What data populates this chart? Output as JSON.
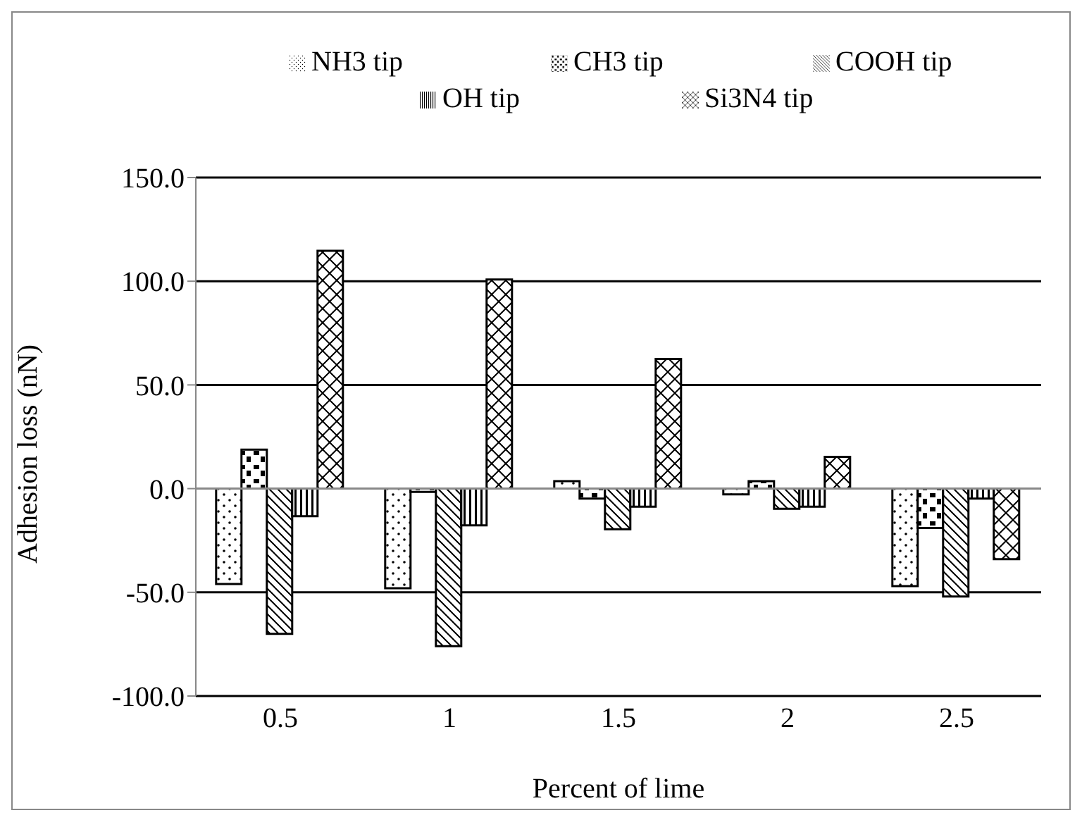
{
  "chart_data": {
    "type": "bar",
    "xlabel": "Percent of lime",
    "ylabel": "Adhesion loss (nN)",
    "categories": [
      "0.5",
      "1",
      "1.5",
      "2",
      "2.5"
    ],
    "series": [
      {
        "name": "NH3 tip",
        "color": "#000000",
        "values": [
          -46,
          -48,
          3.6,
          -2.8,
          -47
        ]
      },
      {
        "name": "CH3 tip",
        "color": "#000000",
        "values": [
          18.8,
          -1.6,
          -4.8,
          3.6,
          -19
        ]
      },
      {
        "name": "COOH tip",
        "color": "#000000",
        "values": [
          -70,
          -76,
          -19.6,
          -9.7,
          -52
        ]
      },
      {
        "name": "OH tip",
        "color": "#000000",
        "values": [
          -13.3,
          -17.7,
          -8.7,
          -8.7,
          -4.8
        ]
      },
      {
        "name": "Si3N4 tip",
        "color": "#000000",
        "values": [
          114.7,
          100.8,
          62.5,
          15.3,
          -34
        ]
      }
    ],
    "ylim": [
      -100,
      150
    ],
    "yticks": [
      {
        "value": -100,
        "label": "-100.0"
      },
      {
        "value": -50,
        "label": "-50.0"
      },
      {
        "value": 0,
        "label": "0.0"
      },
      {
        "value": 50,
        "label": "50.0"
      },
      {
        "value": 100,
        "label": "100.0"
      },
      {
        "value": 150,
        "label": "150.0"
      }
    ],
    "grid": "y",
    "legend": "top"
  }
}
